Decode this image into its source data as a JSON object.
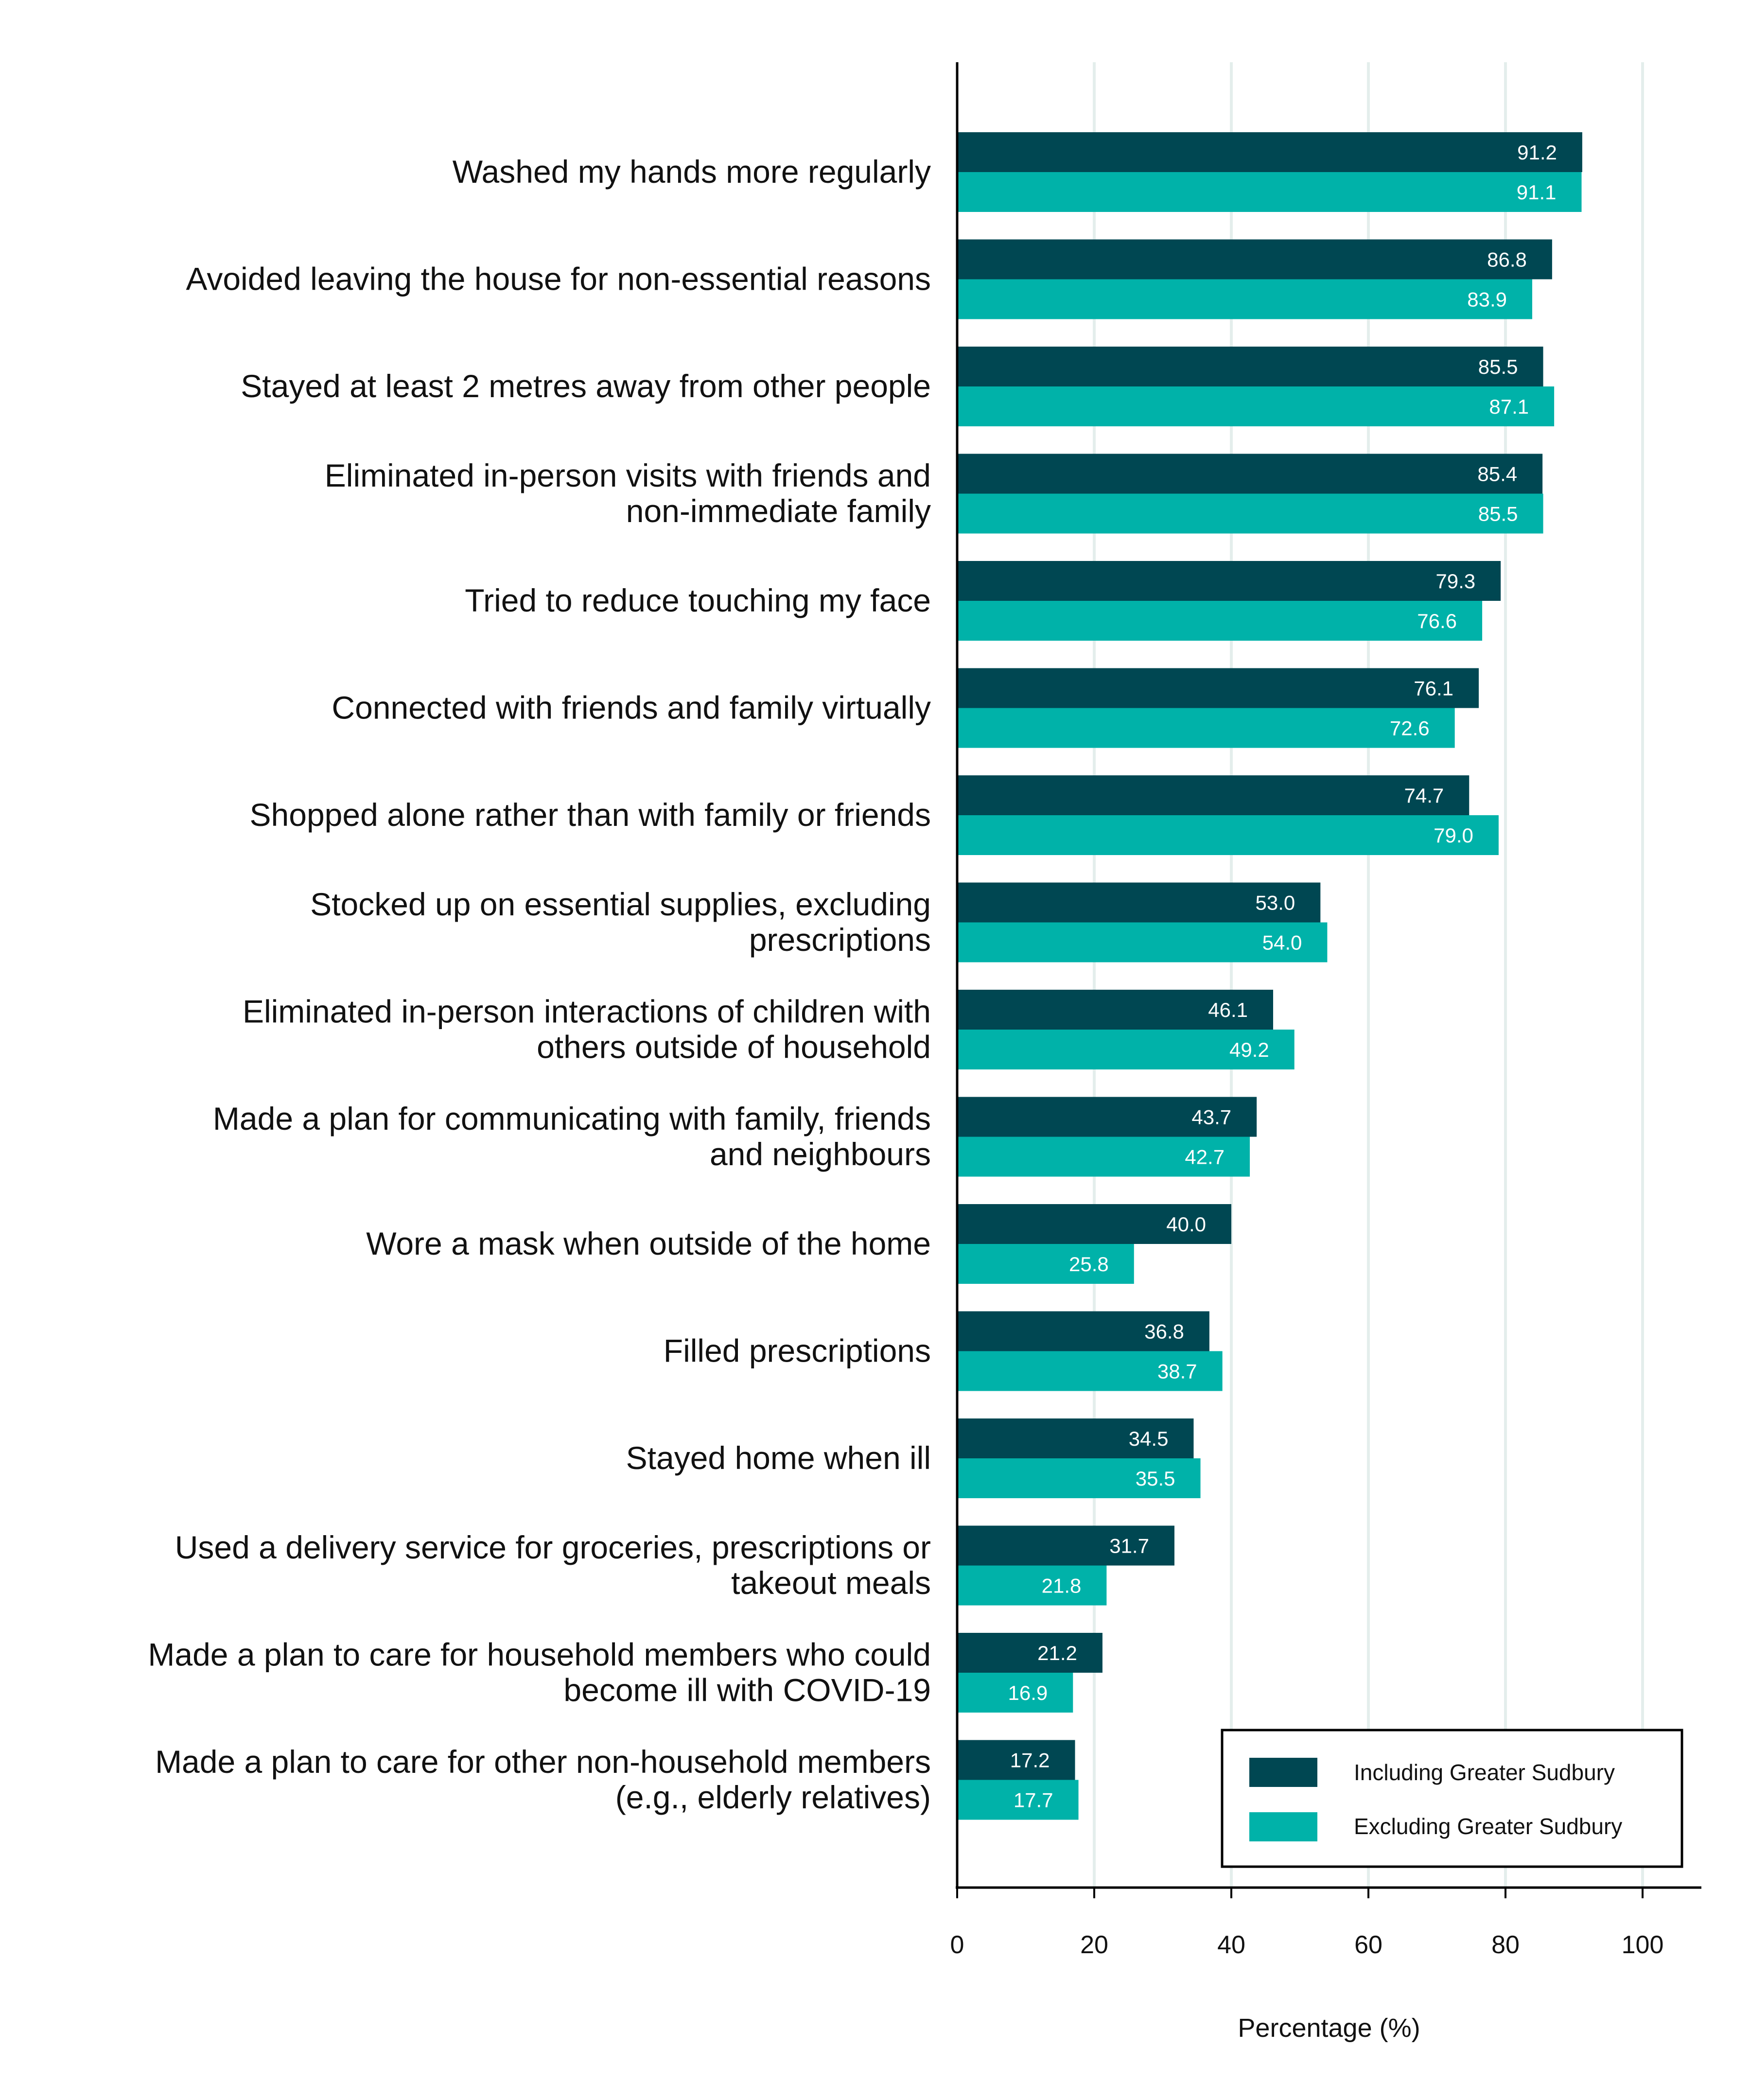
{
  "chart_data": {
    "type": "bar",
    "orientation": "horizontal",
    "categories": [
      [
        "Washed my hands more regularly"
      ],
      [
        "Avoided leaving the house for non-essential reasons"
      ],
      [
        "Stayed at least 2 metres away from other people"
      ],
      [
        "Eliminated in-person visits with friends and",
        "non-immediate family"
      ],
      [
        "Tried to reduce touching my face"
      ],
      [
        "Connected with friends and family virtually"
      ],
      [
        "Shopped alone rather than with family or friends"
      ],
      [
        "Stocked up on essential supplies, excluding",
        "prescriptions"
      ],
      [
        "Eliminated in-person interactions of children with",
        "others outside of household"
      ],
      [
        "Made a plan for communicating with family, friends",
        "and neighbours"
      ],
      [
        "Wore a mask when outside of the home"
      ],
      [
        "Filled prescriptions"
      ],
      [
        "Stayed home when ill"
      ],
      [
        "Used a delivery service for groceries, prescriptions or",
        "takeout meals"
      ],
      [
        "Made a plan to care for household members who could",
        "become ill with COVID-19"
      ],
      [
        "Made a plan to care for other non-household members",
        "(e.g., elderly relatives)"
      ]
    ],
    "series": [
      {
        "name": "Including Greater Sudbury",
        "color": "#004752",
        "values": [
          91.2,
          86.8,
          85.5,
          85.4,
          79.3,
          76.1,
          74.7,
          53.0,
          46.1,
          43.7,
          40.0,
          36.8,
          34.5,
          31.7,
          21.2,
          17.2
        ],
        "labels": [
          "91.2",
          "86.8",
          "85.5",
          "85.4",
          "79.3",
          "76.1",
          "74.7",
          "53.0",
          "46.1",
          "43.7",
          "40.0",
          "36.8",
          "34.5",
          "31.7",
          "21.2",
          "17.2"
        ]
      },
      {
        "name": "Excluding Greater Sudbury",
        "color": "#00B2A9",
        "values": [
          91.1,
          83.9,
          87.1,
          85.5,
          76.6,
          72.6,
          79.0,
          54.0,
          49.2,
          42.7,
          25.8,
          38.7,
          35.5,
          21.8,
          16.9,
          17.7
        ],
        "labels": [
          "91.1",
          "83.9",
          "87.1",
          "85.5",
          "76.6",
          "72.6",
          "79.0",
          "54.0",
          "49.2",
          "42.7",
          "25.8",
          "38.7",
          "35.5",
          "21.8",
          "16.9",
          "17.7"
        ]
      }
    ],
    "xlabel": "Percentage (%)",
    "ylabel": "",
    "xlim": [
      0,
      108
    ],
    "xticks": [
      0,
      20,
      40,
      60,
      80,
      100
    ],
    "grid": "vertical",
    "grid_color": "#E4EEEC",
    "legend": "bottom-right"
  }
}
